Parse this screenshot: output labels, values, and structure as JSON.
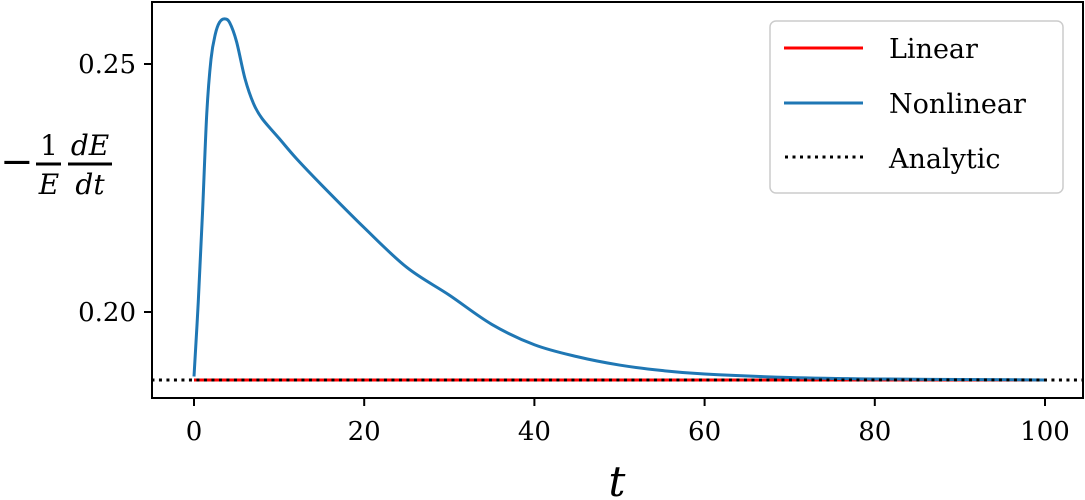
{
  "chart_data": {
    "type": "line",
    "title": "",
    "xlabel": "t",
    "ylabel": "-(1/E) dE/dt",
    "ylabel_parts": {
      "minus": "−",
      "num1": "1",
      "den1": "E",
      "num2": "dE",
      "den2": "dt"
    },
    "xlim": [
      -5,
      105
    ],
    "ylim": [
      0.1827,
      0.2625
    ],
    "xticks": [
      0,
      20,
      40,
      60,
      80,
      100
    ],
    "xtick_labels": [
      "0",
      "20",
      "40",
      "60",
      "80",
      "100"
    ],
    "yticks": [
      0.2,
      0.25
    ],
    "ytick_labels": [
      "0.20",
      "0.25"
    ],
    "grid": false,
    "legend_position": "upper right",
    "legend": [
      "Linear",
      "Nonlinear",
      "Analytic"
    ],
    "series": [
      {
        "name": "Linear",
        "color": "#ff0000",
        "style": "solid",
        "x": [
          0,
          100
        ],
        "y": [
          0.1863,
          0.1863
        ]
      },
      {
        "name": "Nonlinear",
        "color": "#1f77b4",
        "style": "solid",
        "x": [
          0,
          0.5,
          1,
          1.5,
          2,
          2.5,
          3,
          3.6,
          4.2,
          5,
          6,
          7,
          8,
          10,
          12,
          15,
          20,
          25,
          30,
          35,
          40,
          45,
          50,
          55,
          60,
          70,
          80,
          90,
          100
        ],
        "y": [
          0.187,
          0.202,
          0.22,
          0.24,
          0.251,
          0.256,
          0.2584,
          0.2591,
          0.2583,
          0.2545,
          0.247,
          0.242,
          0.239,
          0.235,
          0.231,
          0.2256,
          0.217,
          0.209,
          0.2034,
          0.1975,
          0.1934,
          0.191,
          0.1893,
          0.1882,
          0.1875,
          0.1868,
          0.1865,
          0.1864,
          0.1863
        ]
      },
      {
        "name": "Analytic",
        "color": "#000000",
        "style": "dotted",
        "x": [
          -5,
          105
        ],
        "y": [
          0.1863,
          0.1863
        ]
      }
    ]
  }
}
